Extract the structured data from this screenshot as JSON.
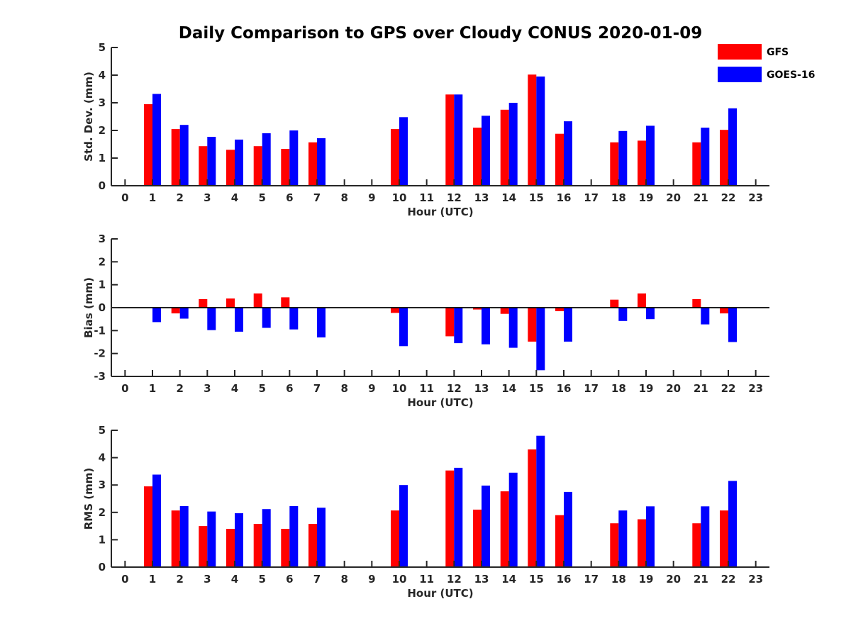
{
  "title": "Daily Comparison to GPS over Cloudy CONUS 2020-01-09",
  "legend": {
    "placement": "top-right",
    "entries": [
      {
        "name": "GFS",
        "color": "#ff0000"
      },
      {
        "name": "GOES-16",
        "color": "#0000ff"
      }
    ]
  },
  "chart_data": [
    {
      "type": "bar",
      "ylabel": "Std. Dev. (mm)",
      "xlabel": "Hour (UTC)",
      "ylim": [
        0,
        5
      ],
      "yticks": [
        "0",
        "1",
        "2",
        "3",
        "4",
        "5"
      ],
      "zero_line": false,
      "categories": [
        "0",
        "1",
        "2",
        "3",
        "4",
        "5",
        "6",
        "7",
        "8",
        "9",
        "10",
        "11",
        "12",
        "13",
        "14",
        "15",
        "16",
        "17",
        "18",
        "19",
        "20",
        "21",
        "22",
        "23"
      ],
      "series": [
        {
          "name": "GFS",
          "color": "#ff0000",
          "values": [
            null,
            2.95,
            2.05,
            1.43,
            1.3,
            1.43,
            1.33,
            1.57,
            null,
            null,
            2.05,
            null,
            3.3,
            2.1,
            2.75,
            4.02,
            1.88,
            null,
            1.57,
            1.63,
            null,
            1.57,
            2.02,
            null
          ]
        },
        {
          "name": "GOES-16",
          "color": "#0000ff",
          "values": [
            null,
            3.32,
            2.2,
            1.77,
            1.67,
            1.9,
            2.0,
            1.72,
            null,
            null,
            2.48,
            null,
            3.3,
            2.53,
            3.0,
            3.95,
            2.33,
            null,
            1.98,
            2.17,
            null,
            2.1,
            2.8,
            null
          ]
        }
      ]
    },
    {
      "type": "bar",
      "ylabel": "Bias (mm)",
      "xlabel": "Hour (UTC)",
      "ylim": [
        -3,
        3
      ],
      "yticks": [
        "-3",
        "-2",
        "-1",
        "0",
        "1",
        "2",
        "3"
      ],
      "zero_line": true,
      "categories": [
        "0",
        "1",
        "2",
        "3",
        "4",
        "5",
        "6",
        "7",
        "8",
        "9",
        "10",
        "11",
        "12",
        "13",
        "14",
        "15",
        "16",
        "17",
        "18",
        "19",
        "20",
        "21",
        "22",
        "23"
      ],
      "series": [
        {
          "name": "GFS",
          "color": "#ff0000",
          "values": [
            null,
            0.0,
            -0.25,
            0.37,
            0.4,
            0.62,
            0.45,
            0.0,
            null,
            null,
            -0.23,
            null,
            -1.25,
            -0.08,
            -0.27,
            -1.48,
            -0.15,
            null,
            0.35,
            0.62,
            null,
            0.37,
            -0.25,
            null
          ]
        },
        {
          "name": "GOES-16",
          "color": "#0000ff",
          "values": [
            null,
            -0.63,
            -0.48,
            -0.98,
            -1.05,
            -0.88,
            -0.95,
            -1.3,
            null,
            null,
            -1.68,
            null,
            -1.55,
            -1.6,
            -1.75,
            -2.73,
            -1.48,
            null,
            -0.58,
            -0.5,
            null,
            -0.73,
            -1.5,
            null
          ]
        }
      ]
    },
    {
      "type": "bar",
      "ylabel": "RMS (mm)",
      "xlabel": "Hour (UTC)",
      "ylim": [
        0,
        5
      ],
      "yticks": [
        "0",
        "1",
        "2",
        "3",
        "4",
        "5"
      ],
      "zero_line": false,
      "categories": [
        "0",
        "1",
        "2",
        "3",
        "4",
        "5",
        "6",
        "7",
        "8",
        "9",
        "10",
        "11",
        "12",
        "13",
        "14",
        "15",
        "16",
        "17",
        "18",
        "19",
        "20",
        "21",
        "22",
        "23"
      ],
      "series": [
        {
          "name": "GFS",
          "color": "#ff0000",
          "values": [
            null,
            2.95,
            2.07,
            1.5,
            1.4,
            1.58,
            1.4,
            1.58,
            null,
            null,
            2.07,
            null,
            3.53,
            2.1,
            2.77,
            4.3,
            1.9,
            null,
            1.6,
            1.75,
            null,
            1.6,
            2.07,
            null
          ]
        },
        {
          "name": "GOES-16",
          "color": "#0000ff",
          "values": [
            null,
            3.38,
            2.23,
            2.03,
            1.97,
            2.12,
            2.23,
            2.17,
            null,
            null,
            3.0,
            null,
            3.63,
            2.98,
            3.45,
            4.8,
            2.75,
            null,
            2.07,
            2.22,
            null,
            2.22,
            3.15,
            null
          ]
        }
      ]
    }
  ]
}
